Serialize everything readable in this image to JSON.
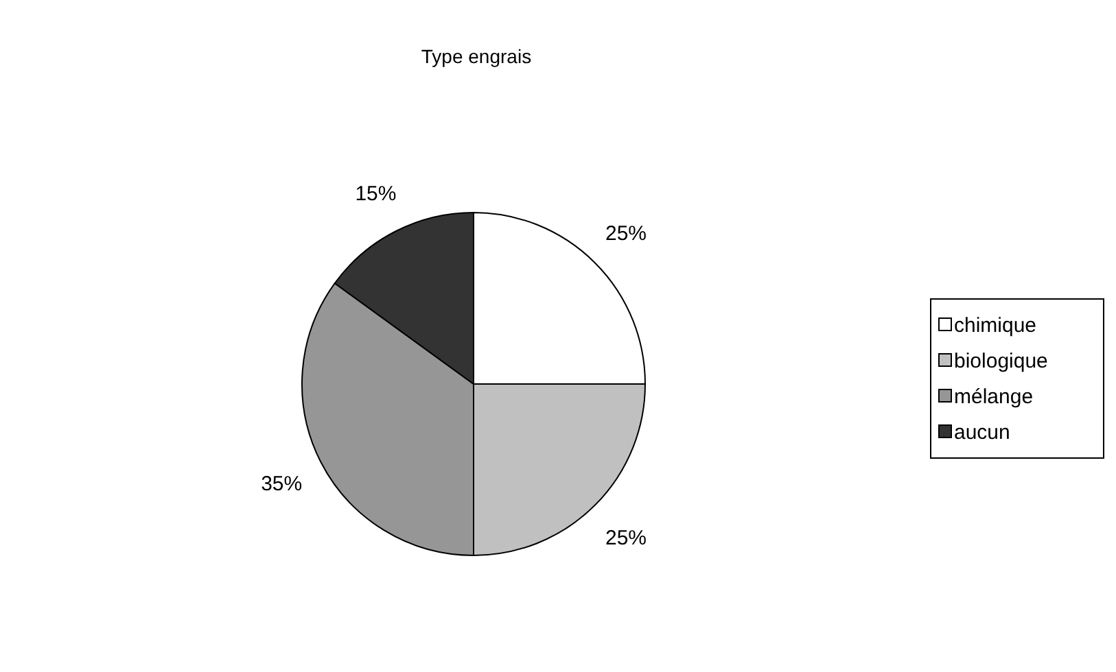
{
  "chart_data": {
    "type": "pie",
    "title": "Type engrais",
    "categories": [
      "chimique",
      "biologique",
      "mélange",
      "aucun"
    ],
    "values": [
      25,
      25,
      35,
      15
    ],
    "colors": [
      "#ffffff",
      "#c0c0c0",
      "#969696",
      "#333333"
    ],
    "value_labels": [
      "25%",
      "25%",
      "35%",
      "15%"
    ],
    "legend": "right"
  }
}
